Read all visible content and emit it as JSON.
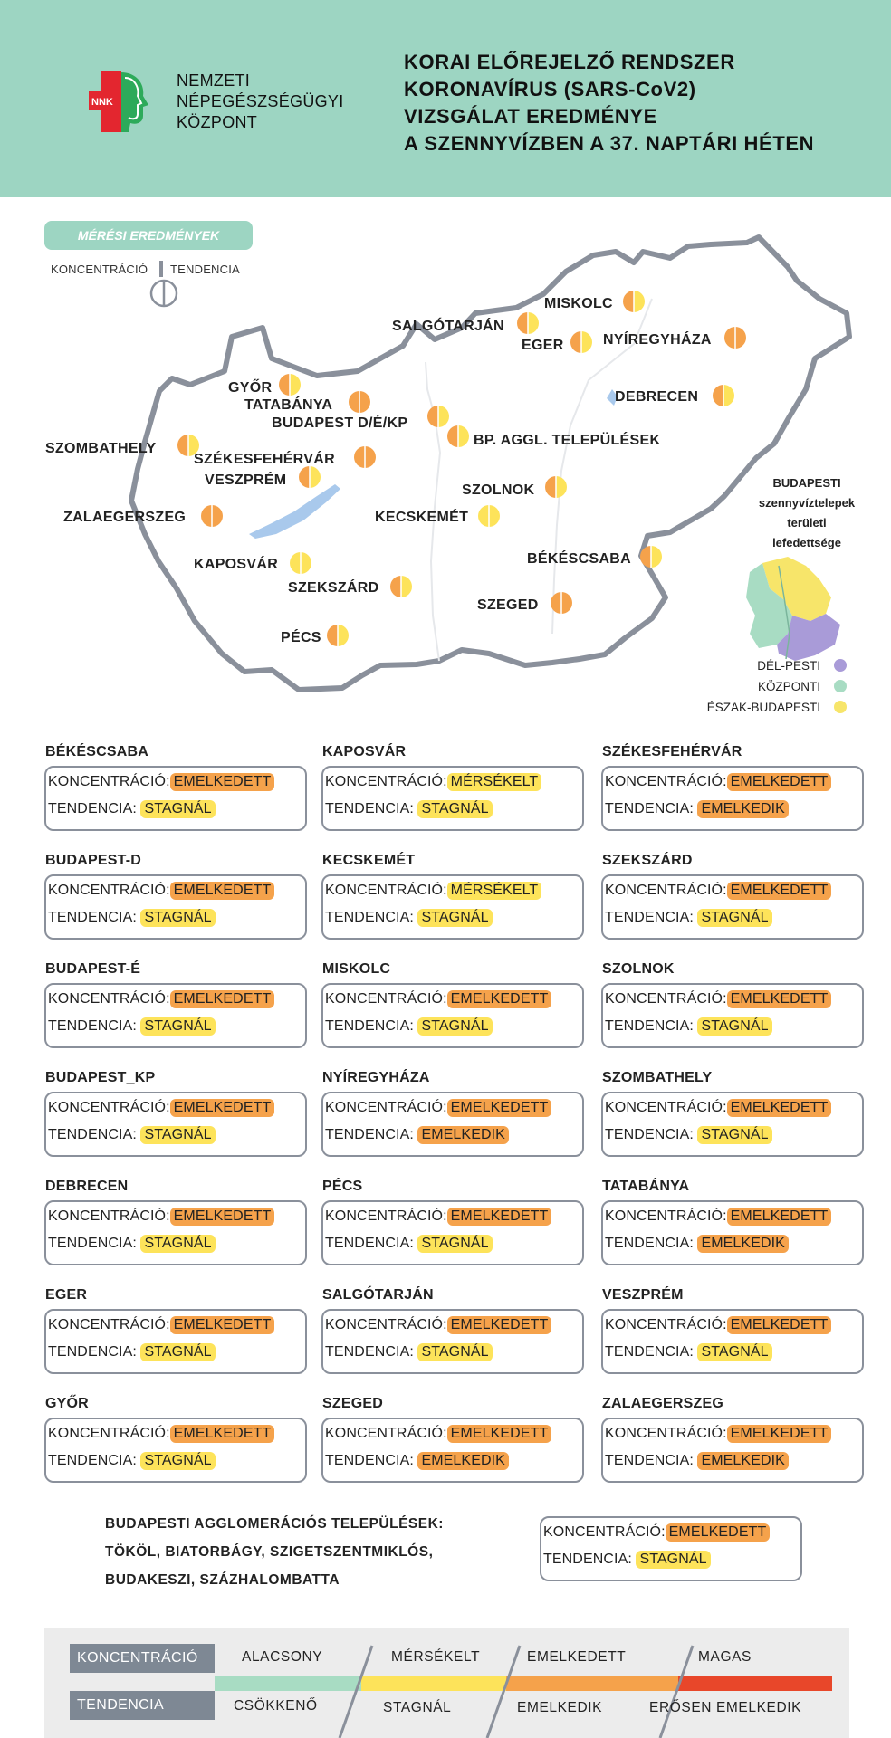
{
  "header": {
    "logo_text": "NNK",
    "org_lines": [
      "NEMZETI",
      "NÉPEGÉSZSÉGÜGYI",
      "KÖZPONT"
    ],
    "title_lines": [
      "KORAI ELŐREJELZŐ RENDSZER",
      "KORONAVÍRUS (SARS-CoV2)",
      "VIZSGÁLAT EREDMÉNYE",
      "A SZENNYVÍZBEN A 37. NAPTÁRI HÉTEN"
    ]
  },
  "map": {
    "section_label": "MÉRÉSI EREDMÉNYEK",
    "key_left": "KONCENTRÁCIÓ",
    "key_right": "TENDENCIA",
    "cities": [
      {
        "name": "MISKOLC",
        "c": "EMELKEDETT",
        "t": "STAGNÁL"
      },
      {
        "name": "SALGÓTARJÁN",
        "c": "EMELKEDETT",
        "t": "STAGNÁL"
      },
      {
        "name": "EGER",
        "c": "EMELKEDETT",
        "t": "STAGNÁL"
      },
      {
        "name": "NYÍREGYHÁZA",
        "c": "EMELKEDETT",
        "t": "EMELKEDIK"
      },
      {
        "name": "GYŐR",
        "c": "EMELKEDETT",
        "t": "STAGNÁL"
      },
      {
        "name": "TATABÁNYA",
        "c": "EMELKEDETT",
        "t": "EMELKEDIK"
      },
      {
        "name": "BUDAPEST D/É/KP",
        "c": "EMELKEDETT",
        "t": "STAGNÁL"
      },
      {
        "name": "BP. AGGL. TELEPÜLÉSEK",
        "c": "EMELKEDETT",
        "t": "STAGNÁL"
      },
      {
        "name": "DEBRECEN",
        "c": "EMELKEDETT",
        "t": "STAGNÁL"
      },
      {
        "name": "SZOMBATHELY",
        "c": "EMELKEDETT",
        "t": "STAGNÁL"
      },
      {
        "name": "SZÉKESFEHÉRVÁR",
        "c": "EMELKEDETT",
        "t": "EMELKEDIK"
      },
      {
        "name": "VESZPRÉM",
        "c": "EMELKEDETT",
        "t": "STAGNÁL"
      },
      {
        "name": "SZOLNOK",
        "c": "EMELKEDETT",
        "t": "STAGNÁL"
      },
      {
        "name": "ZALAEGERSZEG",
        "c": "EMELKEDETT",
        "t": "EMELKEDIK"
      },
      {
        "name": "KECSKEMÉT",
        "c": "MÉRSÉKELT",
        "t": "STAGNÁL"
      },
      {
        "name": "BÉKÉSCSABA",
        "c": "EMELKEDETT",
        "t": "STAGNÁL"
      },
      {
        "name": "KAPOSVÁR",
        "c": "MÉRSÉKELT",
        "t": "STAGNÁL"
      },
      {
        "name": "SZEKSZÁRD",
        "c": "EMELKEDETT",
        "t": "STAGNÁL"
      },
      {
        "name": "SZEGED",
        "c": "EMELKEDETT",
        "t": "EMELKEDIK"
      },
      {
        "name": "PÉCS",
        "c": "EMELKEDETT",
        "t": "STAGNÁL"
      }
    ],
    "inset": {
      "title_lines": [
        "BUDAPESTI",
        "szennyvíztelepek",
        "területi",
        "lefedettsége"
      ],
      "legend": [
        {
          "label": "DÉL-PESTI",
          "color": "#a99bd8"
        },
        {
          "label": "KÖZPONTI",
          "color": "#a8dcc3"
        },
        {
          "label": "ÉSZAK-BUDAPESTI",
          "color": "#f7e56a"
        }
      ]
    }
  },
  "labels": {
    "koncentracio": "KONCENTRÁCIÓ:",
    "tendencia": "TENDENCIA:"
  },
  "cards": [
    {
      "name": "BÉKÉSCSABA",
      "c": "EMELKEDETT",
      "t": "STAGNÁL"
    },
    {
      "name": "KAPOSVÁR",
      "c": "MÉRSÉKELT",
      "t": "STAGNÁL"
    },
    {
      "name": "SZÉKESFEHÉRVÁR",
      "c": "EMELKEDETT",
      "t": "EMELKEDIK"
    },
    {
      "name": "BUDAPEST-D",
      "c": "EMELKEDETT",
      "t": "STAGNÁL"
    },
    {
      "name": "KECSKEMÉT",
      "c": "MÉRSÉKELT",
      "t": "STAGNÁL"
    },
    {
      "name": "SZEKSZÁRD",
      "c": "EMELKEDETT",
      "t": "STAGNÁL"
    },
    {
      "name": "BUDAPEST-É",
      "c": "EMELKEDETT",
      "t": "STAGNÁL"
    },
    {
      "name": "MISKOLC",
      "c": "EMELKEDETT",
      "t": "STAGNÁL"
    },
    {
      "name": "SZOLNOK",
      "c": "EMELKEDETT",
      "t": "STAGNÁL"
    },
    {
      "name": "BUDAPEST_KP",
      "c": "EMELKEDETT",
      "t": "STAGNÁL"
    },
    {
      "name": "NYÍREGYHÁZA",
      "c": "EMELKEDETT",
      "t": "EMELKEDIK"
    },
    {
      "name": "SZOMBATHELY",
      "c": "EMELKEDETT",
      "t": "STAGNÁL"
    },
    {
      "name": "DEBRECEN",
      "c": "EMELKEDETT",
      "t": "STAGNÁL"
    },
    {
      "name": "PÉCS",
      "c": "EMELKEDETT",
      "t": "STAGNÁL"
    },
    {
      "name": "TATABÁNYA",
      "c": "EMELKEDETT",
      "t": "EMELKEDIK"
    },
    {
      "name": "EGER",
      "c": "EMELKEDETT",
      "t": "STAGNÁL"
    },
    {
      "name": "SALGÓTARJÁN",
      "c": "EMELKEDETT",
      "t": "STAGNÁL"
    },
    {
      "name": "VESZPRÉM",
      "c": "EMELKEDETT",
      "t": "STAGNÁL"
    },
    {
      "name": "GYŐR",
      "c": "EMELKEDETT",
      "t": "STAGNÁL"
    },
    {
      "name": "SZEGED",
      "c": "EMELKEDETT",
      "t": "EMELKEDIK"
    },
    {
      "name": "ZALAEGERSZEG",
      "c": "EMELKEDETT",
      "t": "EMELKEDIK"
    }
  ],
  "agglomeration": {
    "lines": [
      "BUDAPESTI AGGLOMERÁCIÓS TELEPÜLÉSEK:",
      "TÖKÖL, BIATORBÁGY, SZIGETSZENTMIKLÓS,",
      "BUDAKESZI, SZÁZHALOMBATTA"
    ],
    "c": "EMELKEDETT",
    "t": "STAGNÁL"
  },
  "legend": {
    "koncentracio_label": "KONCENTRÁCIÓ",
    "tendencia_label": "TENDENCIA",
    "levels": [
      "ALACSONY",
      "MÉRSÉKELT",
      "EMELKEDETT",
      "MAGAS"
    ],
    "trends": [
      "CSÖKKENŐ",
      "STAGNÁL",
      "EMELKEDIK",
      "ERŐSEN EMELKEDIK"
    ],
    "colors": [
      "#a8dcc3",
      "#fde35a",
      "#f5a24b",
      "#e8472a"
    ]
  },
  "colors": {
    "header": "#9dd5c2",
    "emelkedett": "#f5a24b",
    "mersekelt": "#fde35a",
    "border": "#8a909b"
  }
}
